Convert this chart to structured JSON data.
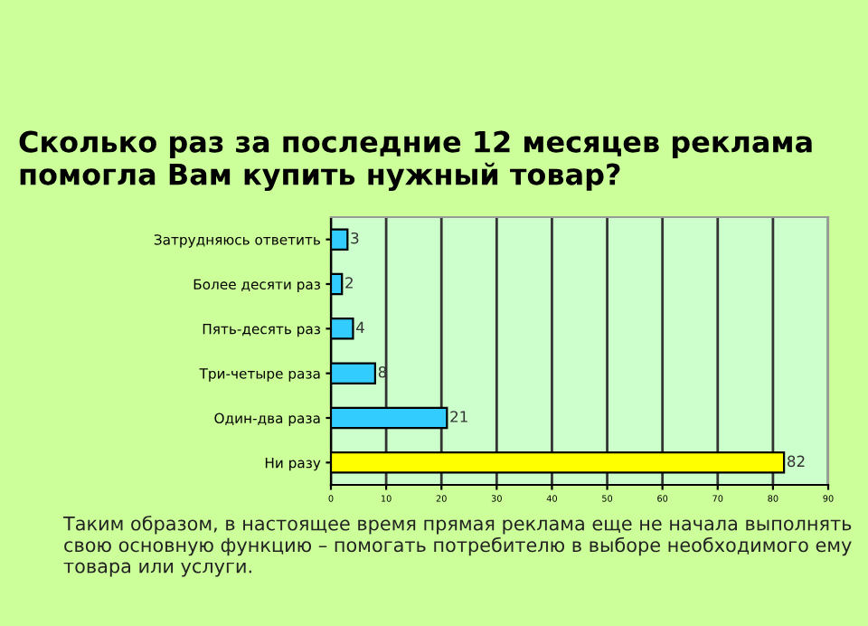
{
  "chart_data": {
    "type": "bar",
    "orientation": "horizontal",
    "title": "Сколько раз за последние 12 месяцев реклама помогла Вам купить нужный товар?",
    "categories": [
      "Затрудняюсь ответить",
      "Более десяти раз",
      "Пять-десять раз",
      "Три-четыре раза",
      "Один-два раза",
      "Ни разу"
    ],
    "values": [
      3,
      2,
      4,
      8,
      21,
      82
    ],
    "colors": [
      "#33ccff",
      "#33ccff",
      "#33ccff",
      "#33ccff",
      "#33ccff",
      "#ffff00"
    ],
    "xlim": [
      0,
      90
    ],
    "xticks": [
      0,
      10,
      20,
      30,
      40,
      50,
      60,
      70,
      80,
      90
    ],
    "grid": "x",
    "data_labels": true,
    "annotations": [
      "Таким образом, в настоящее время прямая реклама еще не начала выполнять свою основную функцию – помогать потребителю в выборе необходимого ему товара или услуги."
    ]
  }
}
